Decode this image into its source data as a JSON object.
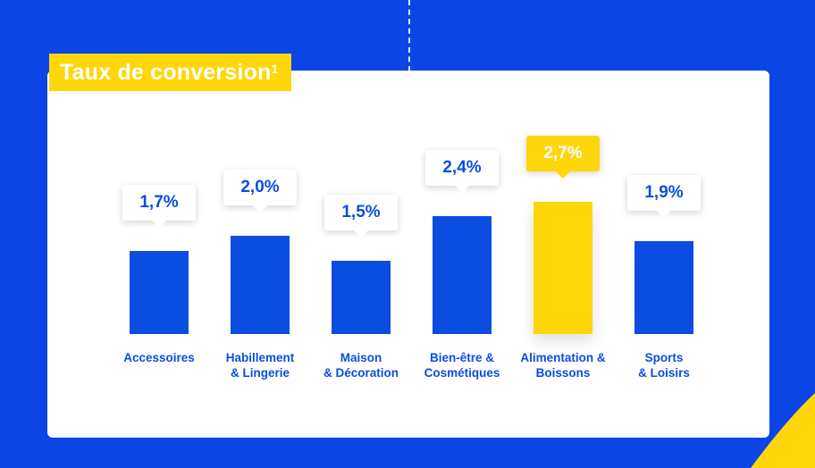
{
  "title": "Taux de conversion",
  "title_sup": "1",
  "colors": {
    "background": "#0B45E6",
    "bar": "#0B4DE0",
    "highlight": "#FFD60A",
    "label": "#0B4DE0"
  },
  "chart_data": {
    "type": "bar",
    "title": "Taux de conversion¹",
    "categories": [
      [
        "Accessoires"
      ],
      [
        "Habillement",
        "& Lingerie"
      ],
      [
        "Maison",
        "& Décoration"
      ],
      [
        "Bien-être &",
        "Cosmétiques"
      ],
      [
        "Alimentation &",
        "Boissons"
      ],
      [
        "Sports",
        "& Loisirs"
      ]
    ],
    "values": [
      1.7,
      2.0,
      1.5,
      2.4,
      2.7,
      1.9
    ],
    "value_labels": [
      "1,7%",
      "2,0%",
      "1,5%",
      "2,4%",
      "2,7%",
      "1,9%"
    ],
    "highlight_index": 4,
    "unit": "%",
    "ylim": [
      0,
      2.7
    ],
    "grid": false,
    "legend": "none"
  }
}
